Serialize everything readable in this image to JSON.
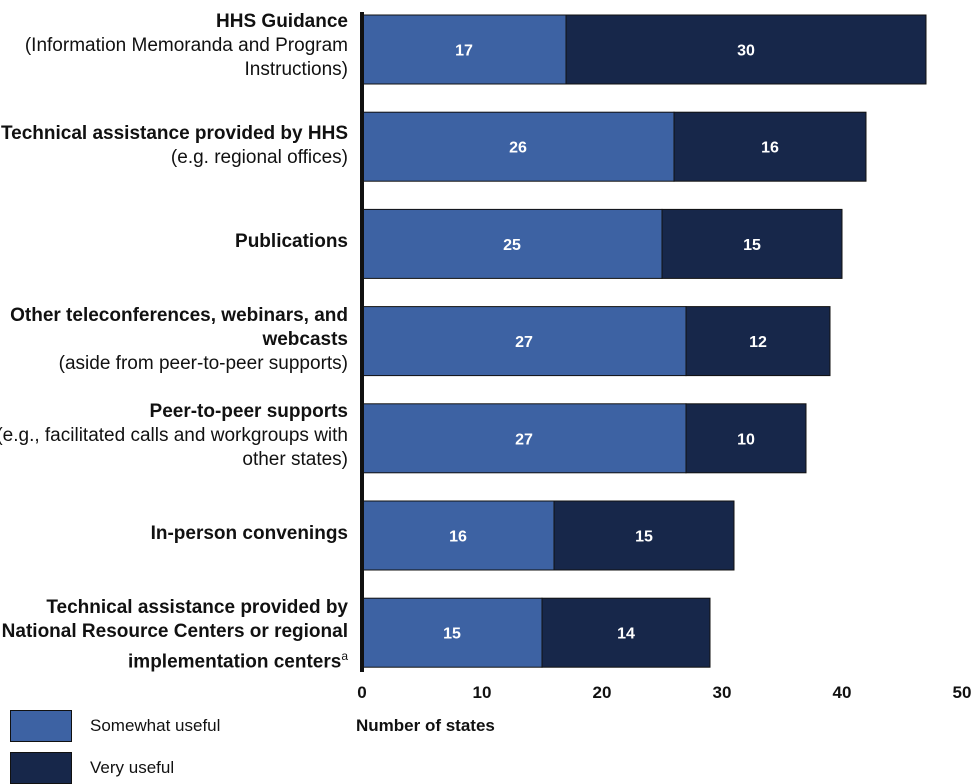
{
  "chart_data": {
    "type": "bar",
    "orientation": "horizontal",
    "stacked": true,
    "xlabel": "Number of states",
    "xlim": [
      0,
      50
    ],
    "xticks": [
      "0",
      "10",
      "20",
      "30",
      "40",
      "50"
    ],
    "grid": false,
    "legend_position": "bottom-left",
    "categories": [
      {
        "bold": "HHS Guidance",
        "rest": "(Information Memoranda and Program Instructions)"
      },
      {
        "bold": "Technical assistance provided by HHS",
        "rest": "(e.g. regional offices)"
      },
      {
        "bold": "Publications",
        "rest": ""
      },
      {
        "bold": "Other teleconferences, webinars, and webcasts",
        "rest": "(aside from peer-to-peer supports)"
      },
      {
        "bold": "Peer-to-peer supports",
        "rest": "(e.g., facilitated calls and workgroups with other states)"
      },
      {
        "bold": "In-person convenings",
        "rest": ""
      },
      {
        "bold": "Technical assistance provided by National Resource Centers or regional implementation centers",
        "rest": "",
        "sup": "a"
      }
    ],
    "series": [
      {
        "name": "Somewhat useful",
        "color": "#3d62a3",
        "values": [
          17,
          26,
          25,
          27,
          27,
          16,
          15
        ]
      },
      {
        "name": "Very useful",
        "color": "#17274a",
        "values": [
          30,
          16,
          15,
          12,
          10,
          15,
          14
        ]
      }
    ]
  }
}
